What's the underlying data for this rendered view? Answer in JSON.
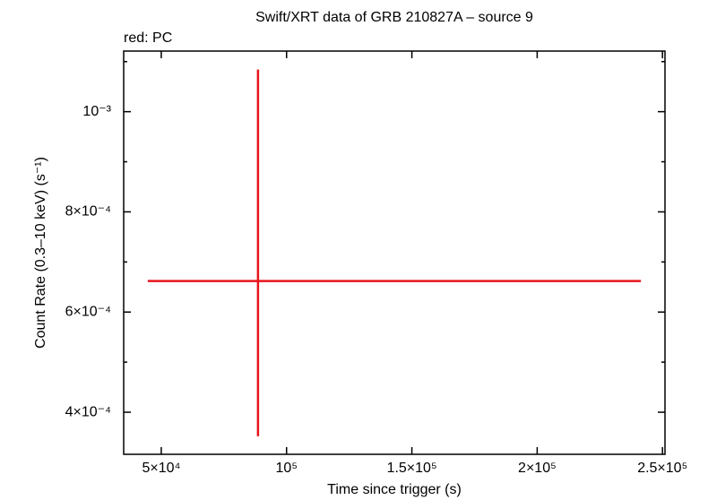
{
  "chart_data": {
    "type": "errorbar",
    "title": "Swift/XRT data of GRB 210827A – source 9",
    "subtitle": "red: PC",
    "x_label": "Time since trigger (s)",
    "y_label": "Count Rate (0.3–10 keV) (s⁻¹)",
    "series": [
      {
        "name": "PC",
        "color": "#e8141c",
        "x": [
          88600
        ],
        "x_low": [
          44600
        ],
        "x_high": [
          241400
        ],
        "values": [
          0.000662
        ],
        "y_low": [
          0.000352
        ],
        "y_high": [
          0.001084
        ]
      }
    ],
    "xlim": [
      35000,
      251000
    ],
    "ylim": [
      0.000316,
      0.001121
    ],
    "xticks": [
      {
        "value": 50000,
        "label": "5×10⁴"
      },
      {
        "value": 100000,
        "label": "10⁵"
      },
      {
        "value": 150000,
        "label": "1.5×10⁵"
      },
      {
        "value": 200000,
        "label": "2×10⁵"
      },
      {
        "value": 250000,
        "label": "2.5×10⁵"
      }
    ],
    "yticks": [
      {
        "value": 0.0004,
        "label": "4×10⁻⁴"
      },
      {
        "value": 0.0006,
        "label": "6×10⁻⁴"
      },
      {
        "value": 0.0008,
        "label": "8×10⁻⁴"
      },
      {
        "value": 0.001,
        "label": "10⁻³"
      }
    ],
    "yminorticks": [
      0.0005,
      0.0007,
      0.0009,
      0.0011
    ]
  }
}
